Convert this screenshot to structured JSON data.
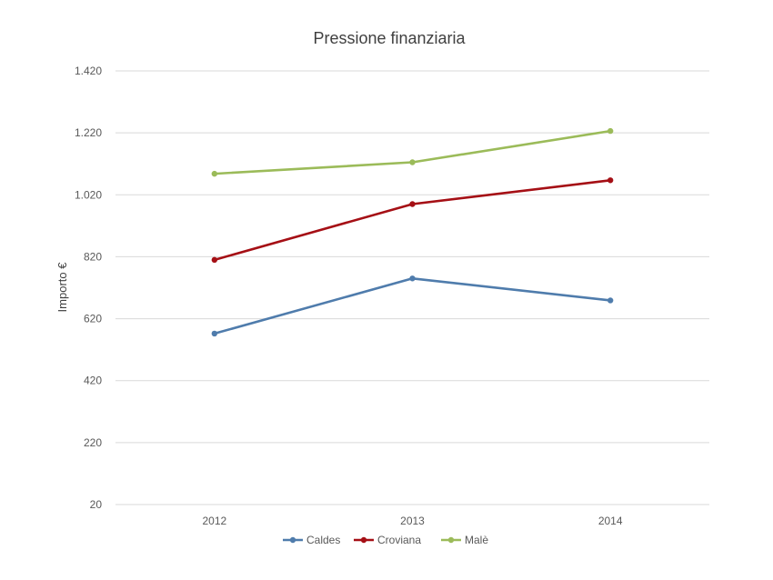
{
  "chart_data": {
    "type": "line",
    "title": "Pressione finanziaria",
    "xlabel": "",
    "ylabel": "Importo €",
    "categories": [
      "2012",
      "2013",
      "2014"
    ],
    "y_ticks": [
      "20",
      "220",
      "420",
      "620",
      "820",
      "1.020",
      "1.220",
      "1.420"
    ],
    "ylim": [
      20,
      1420
    ],
    "grid": true,
    "legend_position": "bottom",
    "series": [
      {
        "name": "Caldes",
        "color": "#4f7cac",
        "values": [
          572,
          750,
          679
        ]
      },
      {
        "name": "Croviana",
        "color": "#a50f15",
        "values": [
          810,
          990,
          1067
        ]
      },
      {
        "name": "Malè",
        "color": "#9bbb59",
        "values": [
          1088,
          1125,
          1226
        ]
      }
    ]
  }
}
